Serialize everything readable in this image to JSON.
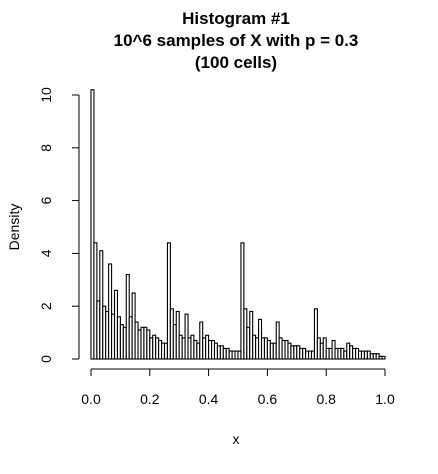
{
  "chart_data": {
    "type": "bar",
    "title_lines": [
      "Histogram #1",
      "10^6 samples of X with p = 0.3",
      "(100 cells)"
    ],
    "xlabel": "x",
    "ylabel": "Density",
    "xlim": [
      0,
      1
    ],
    "ylim": [
      0,
      10.5
    ],
    "x_ticks": [
      0.0,
      0.2,
      0.4,
      0.6,
      0.8,
      1.0
    ],
    "x_tick_labels": [
      "0.0",
      "0.2",
      "0.4",
      "0.6",
      "0.8",
      "1.0"
    ],
    "y_ticks": [
      0,
      2,
      4,
      6,
      8,
      10
    ],
    "y_tick_labels": [
      "0",
      "2",
      "4",
      "6",
      "8",
      "10"
    ],
    "bin_edges_start": 0.0,
    "bin_width": 0.01,
    "values": [
      10.2,
      4.4,
      2.2,
      4.1,
      2.0,
      1.8,
      3.6,
      1.7,
      2.6,
      1.6,
      1.3,
      1.2,
      3.2,
      1.6,
      2.5,
      1.4,
      1.1,
      1.2,
      1.2,
      1.1,
      0.8,
      0.9,
      0.8,
      0.7,
      0.6,
      0.6,
      4.4,
      1.9,
      1.3,
      1.8,
      0.9,
      0.8,
      1.7,
      0.8,
      0.9,
      0.7,
      0.6,
      1.4,
      0.8,
      0.9,
      0.7,
      0.7,
      0.6,
      0.5,
      0.5,
      0.4,
      0.4,
      0.3,
      0.3,
      0.3,
      0.3,
      4.4,
      1.9,
      1.2,
      1.8,
      0.9,
      0.8,
      1.5,
      0.8,
      0.8,
      0.7,
      0.6,
      0.6,
      1.4,
      0.8,
      0.7,
      0.7,
      0.6,
      0.5,
      0.5,
      0.5,
      0.4,
      0.4,
      0.3,
      0.3,
      0.3,
      1.9,
      0.8,
      0.6,
      0.8,
      0.4,
      0.4,
      0.7,
      0.4,
      0.4,
      0.4,
      0.3,
      0.6,
      0.5,
      0.4,
      0.4,
      0.3,
      0.3,
      0.3,
      0.3,
      0.2,
      0.2,
      0.2,
      0.1,
      0.1
    ],
    "bar_fill": "#ffffff",
    "bar_stroke": "#000000",
    "grid": false,
    "legend": "none"
  }
}
